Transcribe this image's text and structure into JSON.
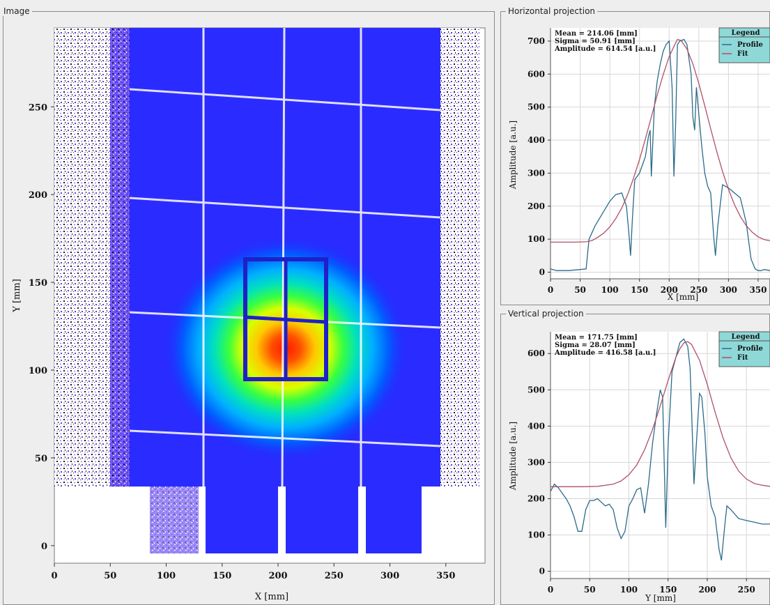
{
  "image_panel": {
    "title": "Image",
    "xlabel": "X [mm]",
    "ylabel": "Y [mm]",
    "xticks": [
      0,
      50,
      100,
      150,
      200,
      250,
      300,
      350
    ],
    "yticks": [
      0,
      50,
      100,
      150,
      200,
      250
    ]
  },
  "horizontal_panel": {
    "title": "Horizontal projection",
    "stats": {
      "mean": "Mean = 214.06 [mm]",
      "sigma": "Sigma = 50.91 [mm]",
      "amplitude": "Amplitude = 614.54 [a.u.]"
    },
    "legend": {
      "title": "Legend",
      "profile": "Profile",
      "fit": "Fit"
    },
    "xlabel": "X [mm]",
    "ylabel": "Amplitude [a.u.]"
  },
  "vertical_panel": {
    "title": "Vertical projection",
    "stats": {
      "mean": "Mean = 171.75 [mm]",
      "sigma": "Sigma = 28.07 [mm]",
      "amplitude": "Amplitude = 416.58 [a.u.]"
    },
    "legend": {
      "title": "Legend",
      "profile": "Profile",
      "fit": "Fit"
    },
    "xlabel": "Y [mm]",
    "ylabel": "Amplitude [a.u.]"
  },
  "colors": {
    "profile": "#2a6a8a",
    "fit": "#b05068",
    "legend_bg": "#8fd8d8",
    "grid": "#d6d6d6"
  },
  "chart_data": [
    {
      "type": "heatmap",
      "panel": "Image",
      "xlabel": "X [mm]",
      "ylabel": "Y [mm]",
      "xlim": [
        0,
        385
      ],
      "ylim": [
        -10,
        295
      ],
      "xticks": [
        0,
        50,
        100,
        150,
        200,
        250,
        300,
        350
      ],
      "yticks": [
        0,
        50,
        100,
        150,
        200,
        250
      ]
    },
    {
      "type": "line",
      "panel": "Horizontal projection",
      "xlabel": "X [mm]",
      "ylabel": "Amplitude [a.u.]",
      "xlim": [
        0,
        370
      ],
      "ylim": [
        -20,
        740
      ],
      "xticks": [
        0,
        50,
        100,
        150,
        200,
        250,
        300,
        350
      ],
      "yticks": [
        0,
        100,
        200,
        300,
        400,
        500,
        600,
        700
      ],
      "grid": true,
      "legend": "top-right",
      "series": [
        {
          "name": "Profile",
          "color": "#2a6a8a",
          "x": [
            0,
            10,
            30,
            50,
            60,
            65,
            70,
            75,
            80,
            90,
            100,
            110,
            120,
            128,
            132,
            135,
            138,
            142,
            150,
            160,
            165,
            168,
            170,
            175,
            180,
            185,
            190,
            195,
            200,
            205,
            208,
            211,
            214,
            218,
            225,
            230,
            237,
            240,
            243,
            246,
            250,
            255,
            260,
            265,
            270,
            275,
            278,
            282,
            290,
            300,
            310,
            320,
            330,
            338,
            345,
            350,
            355,
            360,
            370
          ],
          "y": [
            10,
            5,
            5,
            8,
            10,
            100,
            120,
            140,
            155,
            185,
            215,
            235,
            240,
            200,
            120,
            50,
            160,
            280,
            300,
            350,
            410,
            430,
            290,
            500,
            580,
            630,
            670,
            690,
            700,
            560,
            290,
            450,
            690,
            700,
            705,
            690,
            600,
            470,
            430,
            560,
            480,
            380,
            300,
            260,
            240,
            110,
            50,
            140,
            265,
            255,
            240,
            225,
            150,
            40,
            10,
            5,
            5,
            8,
            5
          ]
        },
        {
          "name": "Fit",
          "color": "#b05068",
          "x": [
            0,
            20,
            40,
            60,
            70,
            80,
            90,
            100,
            110,
            120,
            130,
            140,
            150,
            160,
            170,
            180,
            190,
            200,
            210,
            214,
            220,
            230,
            240,
            250,
            260,
            270,
            280,
            290,
            300,
            310,
            320,
            330,
            340,
            350,
            360,
            370
          ],
          "y": [
            91,
            91,
            91,
            92,
            96,
            106,
            119,
            137,
            162,
            194,
            235,
            285,
            341,
            404,
            470,
            537,
            599,
            653,
            691,
            705,
            702,
            676,
            631,
            572,
            504,
            434,
            367,
            305,
            251,
            205,
            169,
            141,
            121,
            107,
            99,
            95
          ]
        }
      ]
    },
    {
      "type": "line",
      "panel": "Vertical projection",
      "xlabel": "Y [mm]",
      "ylabel": "Amplitude [a.u.]",
      "xlim": [
        0,
        280
      ],
      "ylim": [
        -20,
        660
      ],
      "xticks": [
        0,
        50,
        100,
        150,
        200,
        250
      ],
      "yticks": [
        0,
        100,
        200,
        300,
        400,
        500,
        600
      ],
      "grid": true,
      "legend": "top-right",
      "series": [
        {
          "name": "Profile",
          "color": "#2a6a8a",
          "x": [
            0,
            5,
            10,
            15,
            20,
            25,
            30,
            35,
            40,
            45,
            50,
            55,
            60,
            65,
            70,
            75,
            80,
            85,
            90,
            95,
            100,
            105,
            110,
            115,
            120,
            125,
            130,
            135,
            140,
            143,
            147,
            150,
            155,
            160,
            165,
            170,
            175,
            178,
            180,
            183,
            186,
            190,
            193,
            197,
            200,
            205,
            210,
            215,
            218,
            222,
            225,
            230,
            240,
            250,
            260,
            270,
            280
          ],
          "y": [
            220,
            240,
            230,
            215,
            200,
            180,
            150,
            110,
            110,
            170,
            195,
            195,
            200,
            190,
            180,
            185,
            170,
            120,
            90,
            110,
            180,
            200,
            225,
            230,
            160,
            240,
            350,
            430,
            500,
            480,
            120,
            350,
            550,
            590,
            630,
            640,
            620,
            560,
            440,
            240,
            350,
            490,
            480,
            380,
            260,
            180,
            150,
            60,
            30,
            120,
            180,
            170,
            145,
            140,
            135,
            130,
            130
          ]
        },
        {
          "name": "Fit",
          "color": "#b05068",
          "x": [
            0,
            20,
            40,
            60,
            80,
            90,
            100,
            110,
            120,
            130,
            140,
            150,
            160,
            165,
            170,
            175,
            180,
            190,
            200,
            210,
            220,
            230,
            240,
            250,
            260,
            270,
            280
          ],
          "y": [
            233,
            233,
            233,
            234,
            240,
            249,
            266,
            293,
            335,
            390,
            456,
            526,
            590,
            613,
            629,
            633,
            625,
            582,
            515,
            438,
            368,
            313,
            276,
            254,
            242,
            237,
            234
          ]
        }
      ]
    }
  ]
}
